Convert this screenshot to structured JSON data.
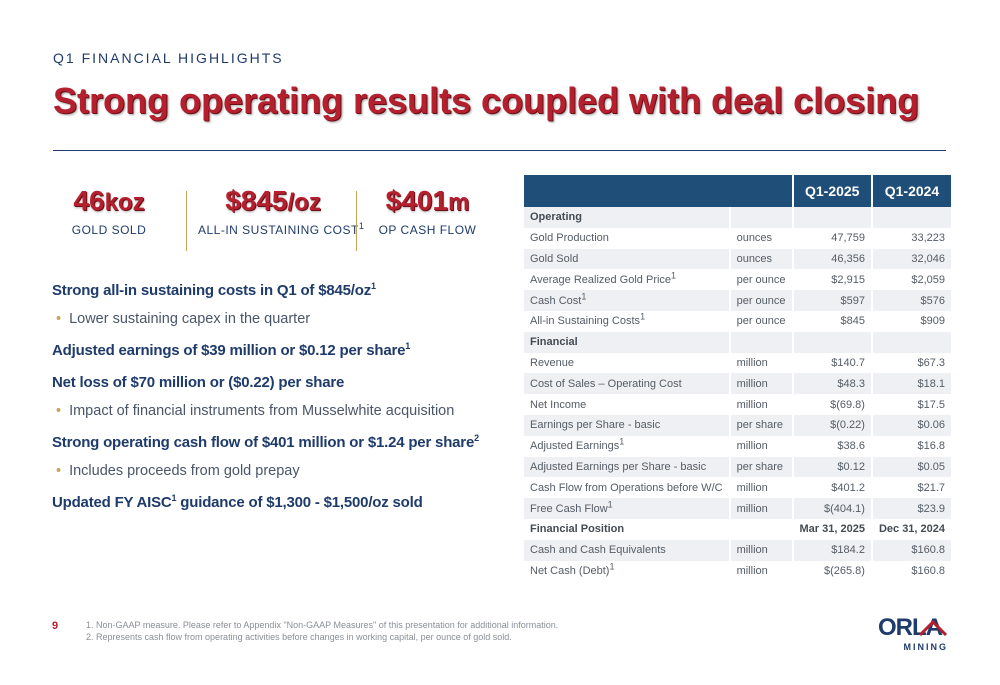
{
  "header": {
    "eyebrow": "Q1 FINANCIAL HIGHLIGHTS",
    "title": "Strong operating results coupled with deal closing"
  },
  "kpis": [
    {
      "value": "46",
      "unit": "koz",
      "label": "GOLD SOLD"
    },
    {
      "value": "$845",
      "unit": "/oz",
      "label": "ALL-IN SUSTAINING COST",
      "sup": "1"
    },
    {
      "value": "$401",
      "unit": "m",
      "label": "OP CASH FLOW"
    }
  ],
  "highlights": [
    {
      "type": "head",
      "text": "Strong all-in sustaining costs in Q1 of $845/oz",
      "sup": "1"
    },
    {
      "type": "sub",
      "text": "Lower sustaining capex in the quarter"
    },
    {
      "type": "head",
      "text": "Adjusted earnings of $39 million or $0.12 per share",
      "sup": "1"
    },
    {
      "type": "head",
      "text": "Net loss of $70 million or ($0.22) per share"
    },
    {
      "type": "sub",
      "text": "Impact of financial instruments from Musselwhite acquisition"
    },
    {
      "type": "head",
      "text": "Strong operating cash flow of $401 million or $1.24 per share",
      "sup": "2"
    },
    {
      "type": "sub",
      "text": "Includes proceeds from gold prepay"
    },
    {
      "type": "head_aisc",
      "pre": "Updated FY AISC",
      "sup": "1",
      "post": " guidance of $1,300 - $1,500/oz sold"
    }
  ],
  "table": {
    "headers": [
      "",
      "",
      "Q1-2025",
      "Q1-2024"
    ],
    "rows": [
      {
        "section": true,
        "label": "Operating",
        "unit": "",
        "q1_2025": "",
        "q1_2024": ""
      },
      {
        "label": "Gold Production",
        "unit": "ounces",
        "q1_2025": "47,759",
        "q1_2024": "33,223"
      },
      {
        "label": "Gold Sold",
        "unit": "ounces",
        "q1_2025": "46,356",
        "q1_2024": "32,046"
      },
      {
        "label": "Average Realized Gold Price",
        "sup": "1",
        "unit": "per ounce",
        "q1_2025": "$2,915",
        "q1_2024": "$2,059"
      },
      {
        "label": "Cash Cost",
        "sup": "1",
        "unit": "per ounce",
        "q1_2025": "$597",
        "q1_2024": "$576"
      },
      {
        "label": "All-in Sustaining Costs",
        "sup": "1",
        "unit": "per ounce",
        "q1_2025": "$845",
        "q1_2024": "$909"
      },
      {
        "section": true,
        "label": "Financial",
        "unit": "",
        "q1_2025": "",
        "q1_2024": ""
      },
      {
        "label": "Revenue",
        "unit": "million",
        "q1_2025": "$140.7",
        "q1_2024": "$67.3"
      },
      {
        "label": "Cost of Sales – Operating Cost",
        "unit": "million",
        "q1_2025": "$48.3",
        "q1_2024": "$18.1"
      },
      {
        "label": "Net Income",
        "unit": "million",
        "q1_2025": "$(69.8)",
        "q1_2024": "$17.5"
      },
      {
        "label": "Earnings per Share - basic",
        "unit": "per share",
        "q1_2025": "$(0.22)",
        "q1_2024": "$0.06"
      },
      {
        "label": "Adjusted Earnings",
        "sup": "1",
        "unit": "million",
        "q1_2025": "$38.6",
        "q1_2024": "$16.8"
      },
      {
        "label": "Adjusted Earnings per Share - basic",
        "unit": "per share",
        "q1_2025": "$0.12",
        "q1_2024": "$0.05"
      },
      {
        "label": "Cash Flow from Operations before W/C",
        "unit": "million",
        "q1_2025": "$401.2",
        "q1_2024": "$21.7"
      },
      {
        "label": "Free Cash Flow",
        "sup": "1",
        "unit": "million",
        "q1_2025": "$(404.1)",
        "q1_2024": "$23.9"
      },
      {
        "section": true,
        "label": "Financial Position",
        "unit": "",
        "q1_2025": "Mar 31, 2025",
        "q1_2024": "Dec 31, 2024"
      },
      {
        "label": "Cash and Cash Equivalents",
        "unit": "million",
        "q1_2025": "$184.2",
        "q1_2024": "$160.8"
      },
      {
        "label": "Net Cash (Debt)",
        "sup": "1",
        "unit": "million",
        "q1_2025": "$(265.8)",
        "q1_2024": "$160.8"
      }
    ]
  },
  "footer": {
    "page_number": "9",
    "footnotes": [
      "1.  Non-GAAP measure. Please refer to Appendix \"Non-GAAP Measures\" of this presentation for additional information.",
      "2.  Represents cash flow from operating activities before changes in working capital, per ounce of gold sold."
    ],
    "logo_word": "ORLA",
    "logo_sub": "MINING"
  },
  "colors": {
    "brand_red": "#b5202e",
    "brand_navy": "#1f3b6b",
    "table_header": "#1f4e79",
    "accent_gold": "#c9a35a"
  }
}
